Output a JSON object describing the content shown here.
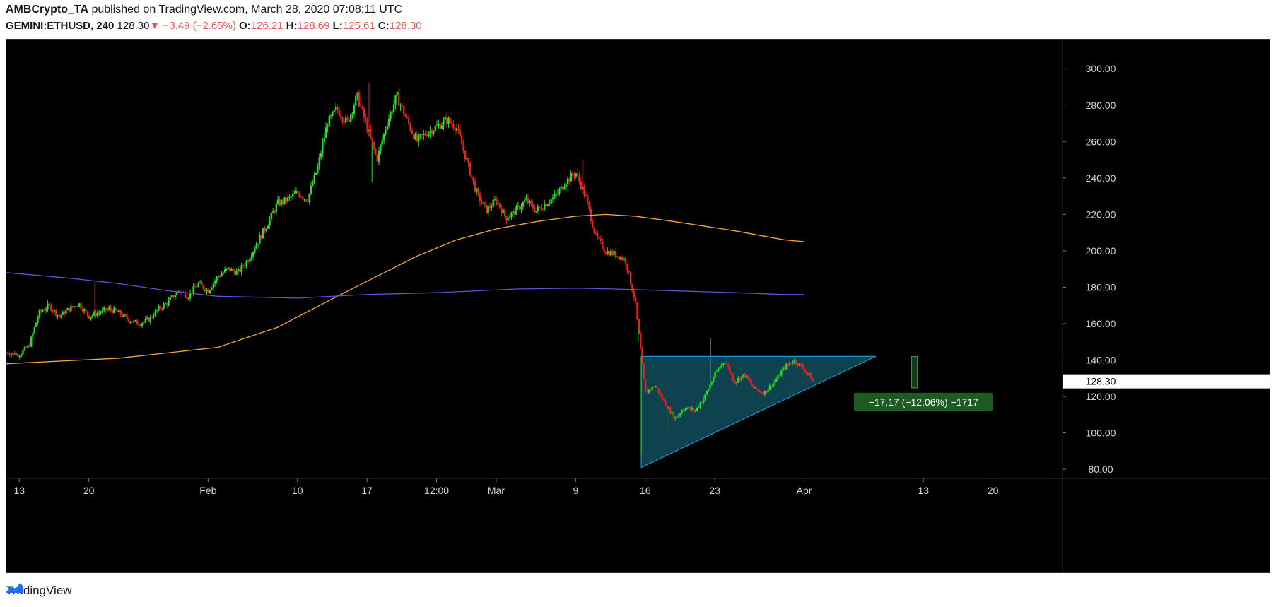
{
  "header": {
    "author": "AMBCrypto_TA",
    "published": " published on TradingView.com, March 28, 2020 07:08:11 UTC",
    "symbol": "GEMINI:ETHUSD, 240",
    "last": "128.30",
    "change": "−3.49 (−2.65%)",
    "open_label": "O:",
    "open": "126.21",
    "high_label": "H:",
    "high": "128.69",
    "low_label": "L:",
    "low": "125.61",
    "close_label": "C:",
    "close": "128.30"
  },
  "footer": {
    "brand": "TradingView",
    "logo_icon": "tradingview-logo-icon"
  },
  "colors": {
    "background": "#000000",
    "up": "#26e026",
    "down": "#ef1e1e",
    "ma_orange": "#f6a73a",
    "ma_purple": "#6a4fd8",
    "triangle_fill": "#0f4d5c",
    "triangle_stroke": "#2196c8",
    "measure_bg": "#1d5a24",
    "price_label_bg": "#ffffff"
  },
  "chart_data": {
    "type": "candlestick",
    "y_ticks": [
      "80.00",
      "100.00",
      "120.00",
      "140.00",
      "160.00",
      "180.00",
      "200.00",
      "220.00",
      "240.00",
      "260.00",
      "280.00",
      "300.00"
    ],
    "ylim": [
      75,
      316
    ],
    "x_ticks": [
      {
        "label": "13",
        "day": 0
      },
      {
        "label": "20",
        "day": 7
      },
      {
        "label": "Feb",
        "day": 19
      },
      {
        "label": "10",
        "day": 28
      },
      {
        "label": "17",
        "day": 35
      },
      {
        "label": "12:00",
        "day": 42
      },
      {
        "label": "Mar",
        "day": 48
      },
      {
        "label": "9",
        "day": 56
      },
      {
        "label": "16",
        "day": 63
      },
      {
        "label": "23",
        "day": 70
      },
      {
        "label": "Apr",
        "day": 79
      },
      {
        "label": "13",
        "day": 91
      },
      {
        "label": "20",
        "day": 98
      }
    ],
    "xlim": [
      -1.3,
      105
    ],
    "current_price_label": "128.30",
    "current_price": 128.3,
    "price_path": [
      [
        -1.3,
        144
      ],
      [
        0,
        143
      ],
      [
        1,
        148
      ],
      [
        2,
        166
      ],
      [
        3,
        170
      ],
      [
        4,
        164
      ],
      [
        5,
        168
      ],
      [
        6,
        171
      ],
      [
        7,
        164
      ],
      [
        8,
        166
      ],
      [
        9,
        168
      ],
      [
        10,
        166
      ],
      [
        11,
        162
      ],
      [
        12,
        160
      ],
      [
        13,
        162
      ],
      [
        14,
        168
      ],
      [
        15,
        172
      ],
      [
        16,
        178
      ],
      [
        17,
        175
      ],
      [
        18,
        182
      ],
      [
        19,
        178
      ],
      [
        20,
        186
      ],
      [
        21,
        190
      ],
      [
        22,
        188
      ],
      [
        23,
        195
      ],
      [
        24,
        205
      ],
      [
        25,
        215
      ],
      [
        26,
        226
      ],
      [
        27,
        228
      ],
      [
        28,
        232
      ],
      [
        29,
        228
      ],
      [
        30,
        245
      ],
      [
        31,
        270
      ],
      [
        32,
        278
      ],
      [
        33,
        270
      ],
      [
        34,
        285
      ],
      [
        35,
        268
      ],
      [
        36,
        250
      ],
      [
        37,
        270
      ],
      [
        38,
        285
      ],
      [
        39,
        272
      ],
      [
        40,
        260
      ],
      [
        41,
        265
      ],
      [
        42,
        268
      ],
      [
        43,
        272
      ],
      [
        44,
        268
      ],
      [
        45,
        250
      ],
      [
        46,
        232
      ],
      [
        47,
        222
      ],
      [
        48,
        228
      ],
      [
        49,
        218
      ],
      [
        50,
        222
      ],
      [
        51,
        228
      ],
      [
        52,
        222
      ],
      [
        53,
        226
      ],
      [
        54,
        230
      ],
      [
        55,
        238
      ],
      [
        56,
        243
      ],
      [
        57,
        230
      ],
      [
        58,
        208
      ],
      [
        59,
        200
      ],
      [
        60,
        198
      ],
      [
        61,
        195
      ],
      [
        62,
        172
      ],
      [
        63,
        122
      ],
      [
        64,
        126
      ],
      [
        65,
        116
      ],
      [
        66,
        108
      ],
      [
        67,
        114
      ],
      [
        68,
        112
      ],
      [
        69,
        120
      ],
      [
        70,
        132
      ],
      [
        71,
        140
      ],
      [
        72,
        128
      ],
      [
        73,
        132
      ],
      [
        74,
        124
      ],
      [
        75,
        122
      ],
      [
        76,
        128
      ],
      [
        77,
        136
      ],
      [
        78,
        140
      ],
      [
        79,
        135
      ],
      [
        80,
        128.3
      ]
    ],
    "wicks": [
      [
        7.6,
        183
      ],
      [
        35.2,
        292
      ],
      [
        35.5,
        238
      ],
      [
        56.7,
        250
      ],
      [
        62.3,
        150
      ],
      [
        62.6,
        88
      ],
      [
        65.2,
        100
      ],
      [
        69.6,
        152
      ]
    ],
    "series": [
      {
        "name": "",
        "color": "#f6a73a",
        "points": [
          [
            -1.3,
            138
          ],
          [
            10,
            141
          ],
          [
            20,
            147
          ],
          [
            26,
            158
          ],
          [
            32,
            175
          ],
          [
            36,
            186
          ],
          [
            40,
            197
          ],
          [
            44,
            206
          ],
          [
            48,
            212
          ],
          [
            52,
            216
          ],
          [
            56,
            219
          ],
          [
            59,
            220
          ],
          [
            62,
            219
          ],
          [
            66,
            216
          ],
          [
            72,
            211
          ],
          [
            77,
            206
          ],
          [
            79,
            205
          ]
        ]
      },
      {
        "name": "",
        "color": "#6a4fd8",
        "points": [
          [
            -1.3,
            188
          ],
          [
            5,
            185
          ],
          [
            10,
            182
          ],
          [
            15,
            178
          ],
          [
            20,
            175
          ],
          [
            28,
            174
          ],
          [
            35,
            176
          ],
          [
            42,
            177
          ],
          [
            50,
            179
          ],
          [
            56,
            179.5
          ],
          [
            60,
            179
          ],
          [
            66,
            178
          ],
          [
            72,
            177
          ],
          [
            77,
            176
          ],
          [
            79,
            176
          ]
        ]
      }
    ],
    "annotations": {
      "triangle": {
        "top_left": [
          62.6,
          142
        ],
        "top_right": [
          86.2,
          142
        ],
        "bottom": [
          62.6,
          81
        ]
      },
      "measure": {
        "label": "−17.17 (−12.06%) −1717",
        "x0": 89.8,
        "x1": 90.4,
        "y0": 142,
        "y1": 124.7,
        "box_day_from": 84,
        "box_day_to": 98,
        "box_center_price": 117
      }
    }
  }
}
